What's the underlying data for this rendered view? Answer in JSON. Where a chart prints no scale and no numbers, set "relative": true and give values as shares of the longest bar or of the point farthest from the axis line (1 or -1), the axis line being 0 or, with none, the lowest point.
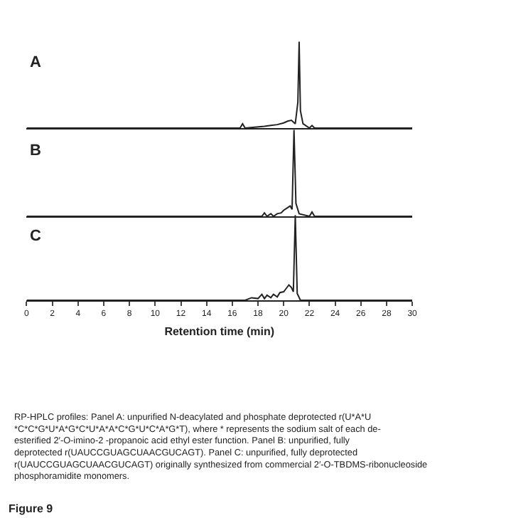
{
  "chart_data": [
    {
      "type": "line",
      "title": "A",
      "relative": true,
      "xlim": [
        0,
        30
      ],
      "xticks": [
        0,
        2,
        4,
        6,
        8,
        10,
        12,
        14,
        16,
        18,
        20,
        22,
        24,
        26,
        28,
        30
      ],
      "tick_labels": false,
      "series": [
        {
          "color": "#222222",
          "x": [
            0,
            16.6,
            16.8,
            17.0,
            18.5,
            19.0,
            19.5,
            20.0,
            20.3,
            20.6,
            20.9,
            21.1,
            21.2,
            21.3,
            21.5,
            22.0,
            22.2,
            22.4,
            30
          ],
          "values": [
            0,
            0,
            0.05,
            0,
            0.02,
            0.03,
            0.04,
            0.06,
            0.08,
            0.09,
            0.05,
            0.3,
            1,
            0.2,
            0.05,
            0,
            0.03,
            0,
            0
          ]
        }
      ]
    },
    {
      "type": "line",
      "title": "B",
      "relative": true,
      "xlim": [
        0,
        30
      ],
      "xticks": [
        0,
        2,
        4,
        6,
        8,
        10,
        12,
        14,
        16,
        18,
        20,
        22,
        24,
        26,
        28,
        30
      ],
      "tick_labels": false,
      "series": [
        {
          "color": "#222222",
          "x": [
            0,
            18.3,
            18.5,
            18.7,
            19.0,
            19.2,
            19.5,
            19.8,
            20.0,
            20.3,
            20.5,
            20.65,
            20.8,
            20.95,
            21.2,
            22.0,
            22.2,
            22.4,
            30
          ],
          "values": [
            0,
            0,
            0.04,
            0,
            0.03,
            0,
            0.03,
            0.04,
            0.07,
            0.1,
            0.12,
            0.08,
            1,
            0.15,
            0.03,
            0,
            0.05,
            0,
            0
          ]
        }
      ]
    },
    {
      "type": "line",
      "title": "C",
      "relative": true,
      "xlim": [
        0,
        30
      ],
      "xticks": [
        0,
        2,
        4,
        6,
        8,
        10,
        12,
        14,
        16,
        18,
        20,
        22,
        24,
        26,
        28,
        30
      ],
      "xlabel": "Retention time (min)",
      "annotations": [
        "RP-HPLC profiles: Panel A: unpurified N-deacylated and phosphate deprotected r(U*A*U *C*C*G*U*A*G*C*U*A*A*C*G*U*C*A*G*T), where * represents the sodium salt of each de-esterified 2′-O-imino-2 -propanoic acid ethyl ester function. Panel B: unpurified, fully deprotected r(UAUCCGUAGCUAACGUCAGT). Panel C: unpurified, fully deprotected r(UAUCCGUAGCUAACGUCAGT) originally synthesized from commercial 2′-O-TBDMS-ribonucleoside phosphoramidite monomers.",
        "Figure 9"
      ],
      "series": [
        {
          "color": "#222222",
          "x": [
            0,
            17.0,
            17.5,
            18.0,
            18.3,
            18.5,
            18.7,
            19.0,
            19.2,
            19.5,
            19.7,
            20.0,
            20.2,
            20.4,
            20.6,
            20.75,
            20.9,
            21.05,
            21.3,
            30
          ],
          "values": [
            0,
            0,
            0.03,
            0.02,
            0.07,
            0.02,
            0.06,
            0.03,
            0.07,
            0.04,
            0.09,
            0.1,
            0.14,
            0.18,
            0.15,
            0.1,
            1,
            0.08,
            0,
            0
          ]
        }
      ]
    }
  ]
}
